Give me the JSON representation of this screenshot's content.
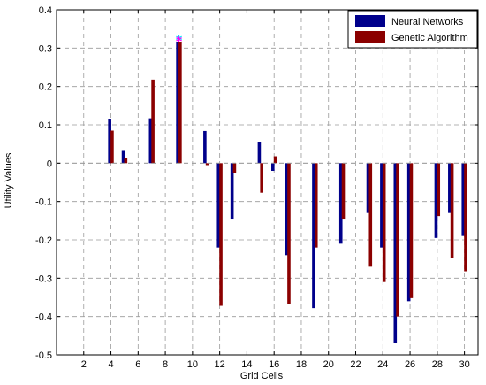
{
  "chart_data": {
    "type": "bar",
    "xlabel": "Grid Cells",
    "ylabel": "Utility Values",
    "xlim": [
      0,
      31
    ],
    "ylim": [
      -0.5,
      0.4
    ],
    "xticks": [
      2,
      4,
      6,
      8,
      10,
      12,
      14,
      16,
      18,
      20,
      22,
      24,
      26,
      28,
      30
    ],
    "xtick_labels": [
      "2",
      "4",
      "6",
      "8",
      "10",
      "12",
      "14",
      "16",
      "18",
      "20",
      "22",
      "24",
      "26",
      "28",
      "30"
    ],
    "yticks": [
      -0.5,
      -0.4,
      -0.3,
      -0.2,
      -0.1,
      0,
      0.1,
      0.2,
      0.3,
      0.4
    ],
    "ytick_labels": [
      "-0.5",
      "-0.4",
      "-0.3",
      "-0.2",
      "-0.1",
      "0",
      "0.1",
      "0.2",
      "0.3",
      "0.4"
    ],
    "grid": true,
    "legend_position": "top-right",
    "x": [
      4,
      5,
      7,
      9,
      11,
      12,
      13,
      15,
      16,
      17,
      19,
      21,
      23,
      24,
      25,
      26,
      28,
      29,
      30
    ],
    "series": [
      {
        "name": "Neural Networks",
        "color": "#00008b",
        "values": [
          0.115,
          0.032,
          0.117,
          0.316,
          0.084,
          -0.22,
          -0.147,
          0.055,
          -0.02,
          -0.24,
          -0.378,
          -0.21,
          -0.13,
          -0.22,
          -0.47,
          -0.36,
          -0.195,
          -0.13,
          -0.19
        ]
      },
      {
        "name": "Genetic Algorithm",
        "color": "#8b0000",
        "values": [
          0.085,
          0.013,
          0.218,
          0.316,
          -0.005,
          -0.372,
          -0.025,
          -0.077,
          0.018,
          -0.367,
          -0.22,
          -0.147,
          -0.27,
          -0.31,
          -0.4,
          -0.352,
          -0.138,
          -0.248,
          -0.282
        ]
      }
    ],
    "markers": [
      {
        "x": 9,
        "y": 0.322,
        "color": "#00e5ff",
        "symbol": "*"
      },
      {
        "x": 9,
        "y": 0.318,
        "color": "#ff00ff",
        "symbol": "*"
      }
    ]
  }
}
